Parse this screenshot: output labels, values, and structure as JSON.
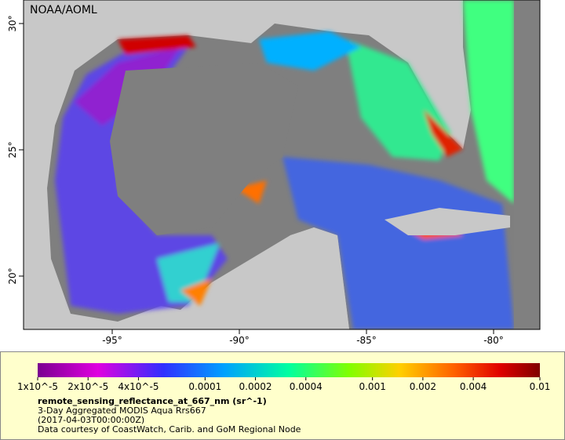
{
  "map": {
    "source": "NOAA/AOML",
    "lat_ticks": [
      {
        "value": 30,
        "label": "30°"
      },
      {
        "value": 25,
        "label": "25°"
      },
      {
        "value": 20,
        "label": "20°"
      }
    ],
    "lon_ticks": [
      {
        "value": -95,
        "label": "-95°"
      },
      {
        "value": -90,
        "label": "-90°"
      },
      {
        "value": -85,
        "label": "-85°"
      },
      {
        "value": -80,
        "label": "-80°"
      }
    ],
    "colorbar": {
      "log_scale": true,
      "limits": [
        1e-05,
        0.01
      ],
      "ticks": [
        {
          "value": 1e-05,
          "label": "1x10^-5"
        },
        {
          "value": 2e-05,
          "label": "2x10^-5"
        },
        {
          "value": 4e-05,
          "label": "4x10^-5"
        },
        {
          "value": 0.0001,
          "label": "0.0001"
        },
        {
          "value": 0.0002,
          "label": "0.0002"
        },
        {
          "value": 0.0004,
          "label": "0.0004"
        },
        {
          "value": 0.001,
          "label": "0.001"
        },
        {
          "value": 0.002,
          "label": "0.002"
        },
        {
          "value": 0.004,
          "label": "0.004"
        },
        {
          "value": 0.01,
          "label": "0.01"
        }
      ]
    },
    "variable": "remote_sensing_reflectance_at_667_nm (sr^-1)",
    "description": "3-Day Aggregated MODIS Aqua Rrs667",
    "time": "(2017-04-03T00:00:00Z)",
    "credit": "Data courtesy of CoastWatch, Carib. and GoM Regional Node"
  }
}
